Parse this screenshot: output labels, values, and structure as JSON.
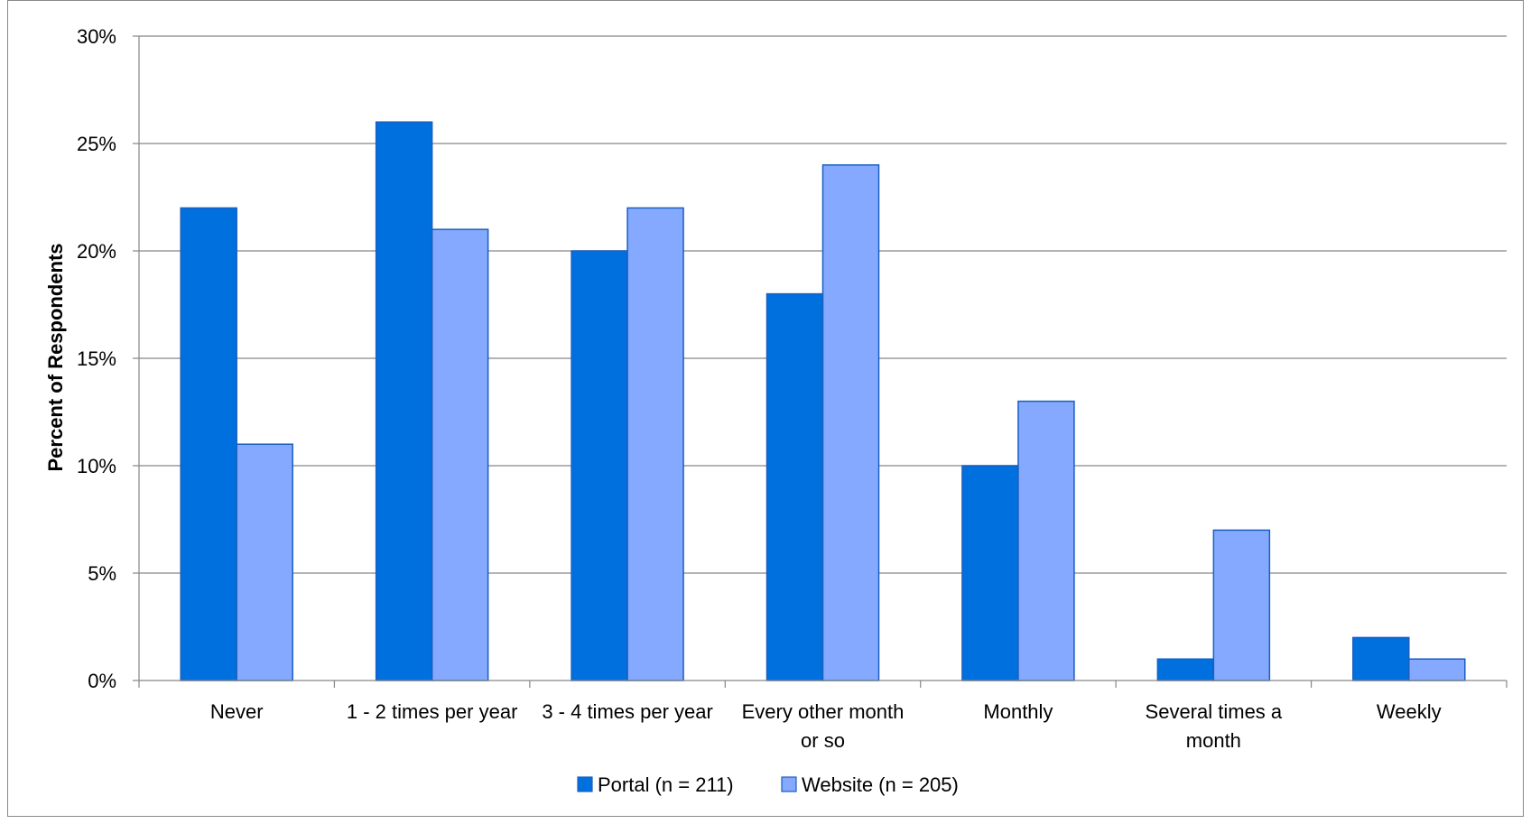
{
  "chart_data": {
    "type": "bar",
    "title": "",
    "xlabel": "",
    "ylabel": "Percent of Respondents",
    "ylim": [
      0,
      30
    ],
    "yticks": [
      "0%",
      "5%",
      "10%",
      "15%",
      "20%",
      "25%",
      "30%"
    ],
    "y_tick_values": [
      0,
      5,
      10,
      15,
      20,
      25,
      30
    ],
    "grid": true,
    "legend_position": "bottom",
    "categories": [
      [
        "Never"
      ],
      [
        "1 - 2 times per year"
      ],
      [
        "3 - 4 times per year"
      ],
      [
        "Every other month",
        "or so"
      ],
      [
        "Monthly"
      ],
      [
        "Several times a",
        "month"
      ],
      [
        "Weekly"
      ]
    ],
    "series": [
      {
        "name": "Portal (n = 211)",
        "color": "#0070DF",
        "values": [
          22,
          26,
          20,
          18,
          10,
          1,
          2
        ]
      },
      {
        "name": "Website (n = 205)",
        "color": "#85A9FF",
        "values": [
          11,
          21,
          22,
          24,
          13,
          7,
          1
        ]
      }
    ]
  }
}
